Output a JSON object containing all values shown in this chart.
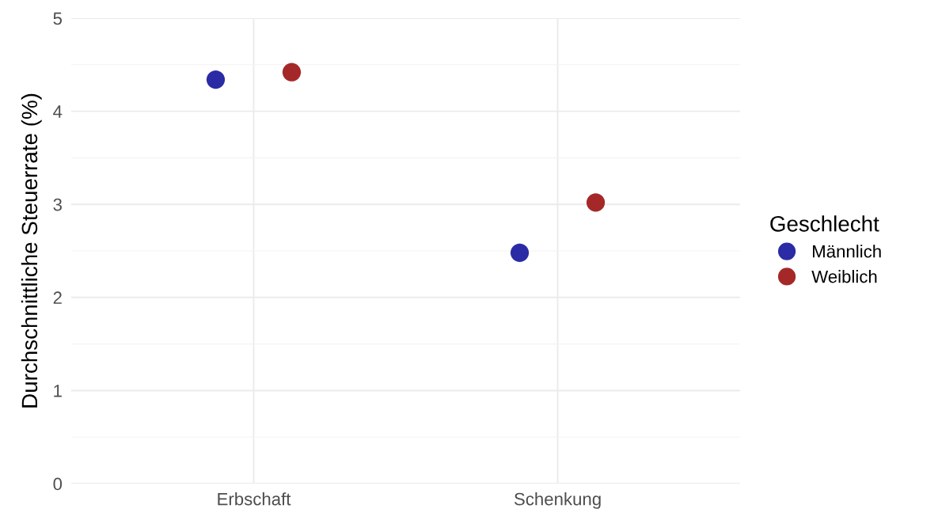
{
  "chart_data": {
    "type": "scatter",
    "ylabel": "Durchschnittliche Steuerrate (%)",
    "legend_title": "Geschlecht",
    "categories": [
      "Erbschaft",
      "Schenkung"
    ],
    "series": [
      {
        "name": "Männlich",
        "color": "#2b2ba6",
        "values": [
          4.34,
          2.48
        ]
      },
      {
        "name": "Weiblich",
        "color": "#a52828",
        "values": [
          4.42,
          3.02
        ]
      }
    ],
    "ylim": [
      0,
      5
    ],
    "yticks": [
      0,
      1,
      2,
      3,
      4,
      5
    ],
    "grid": true,
    "legend": "right",
    "marker": "circle"
  }
}
